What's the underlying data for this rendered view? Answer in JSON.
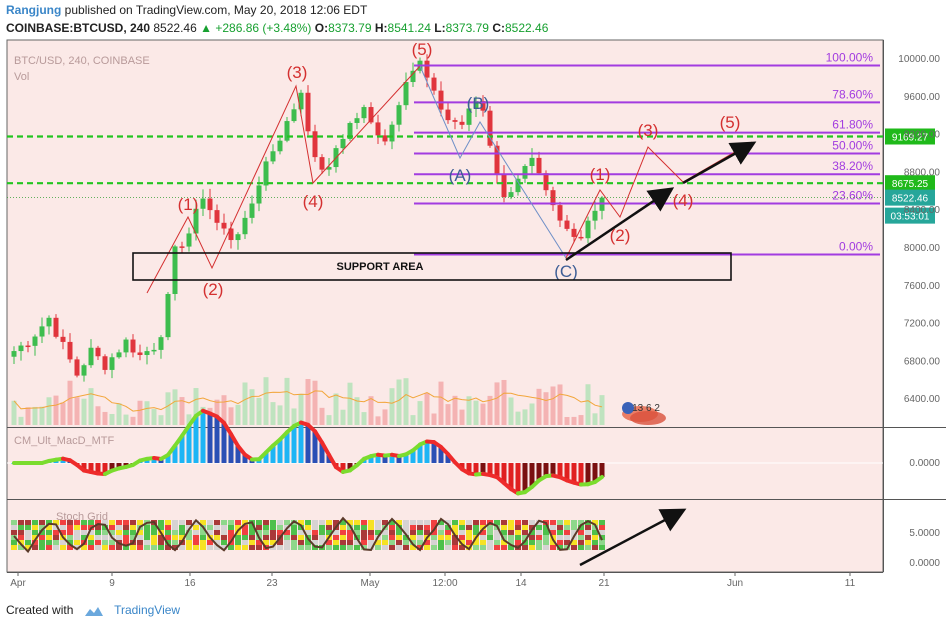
{
  "header": {
    "author": "Rangjung",
    "published_text": "published on TradingView.com, May 20, 2018 12:06 EDT",
    "symbol": "COINBASE:BTCUSD, 240",
    "last": "8522.46",
    "change": "+286.86 (+3.48%)",
    "o_label": "O:",
    "o": "8373.79",
    "h_label": "H:",
    "h": "8541.24",
    "l_label": "L:",
    "l": "8373.79",
    "c_label": "C:",
    "c": "8522.46"
  },
  "legend": {
    "series": "BTC/USD, 240, COINBASE",
    "vol": "Vol"
  },
  "footer": {
    "created_with": "Created with",
    "brand": "TradingView"
  },
  "colors": {
    "bull": "#3dbd4e",
    "bear": "#e0353d",
    "fib": "#a23ce0",
    "dashed": "#22c51f",
    "wave": "#d43030",
    "abc": "#3d5e96",
    "ma": "#f2a63b"
  },
  "panel_labels": {
    "macd": "CM_Ult_MacD_MTF",
    "stoch": "Stoch Grid"
  },
  "chart_data": {
    "type": "candlestick",
    "title": "BTC/USD, 240, COINBASE",
    "ylim": [
      6200,
      10150
    ],
    "y_ticks": [
      "10000.00",
      "9600.00",
      "9200.00",
      "8800.00",
      "8400.00",
      "8000.00",
      "7600.00",
      "7200.00",
      "6800.00",
      "6400.00"
    ],
    "x_ticks": [
      "Apr",
      "9",
      "16",
      "23",
      "May",
      "12:00",
      "14",
      "21",
      "Jun",
      "11"
    ],
    "price_path": [
      [
        0,
        6900
      ],
      [
        2,
        7000
      ],
      [
        5,
        7250
      ],
      [
        7,
        6950
      ],
      [
        9,
        6650
      ],
      [
        11,
        6900
      ],
      [
        13,
        6750
      ],
      [
        16,
        7000
      ],
      [
        18,
        6850
      ],
      [
        20,
        6950
      ],
      [
        21,
        7100
      ],
      [
        22,
        7450
      ],
      [
        23,
        7950
      ],
      [
        25,
        8150
      ],
      [
        27,
        8550
      ],
      [
        29,
        8250
      ],
      [
        31,
        8100
      ],
      [
        33,
        8250
      ],
      [
        36,
        8900
      ],
      [
        39,
        9300
      ],
      [
        41,
        9650
      ],
      [
        43,
        8900
      ],
      [
        45,
        8800
      ],
      [
        46,
        9050
      ],
      [
        48,
        9300
      ],
      [
        50,
        9450
      ],
      [
        51,
        9300
      ],
      [
        53,
        9150
      ],
      [
        54,
        9300
      ],
      [
        56,
        9800
      ],
      [
        58,
        9950
      ],
      [
        60,
        9600
      ],
      [
        62,
        9350
      ],
      [
        64,
        9300
      ],
      [
        66,
        9550
      ],
      [
        67,
        9450
      ],
      [
        68,
        9100
      ],
      [
        70,
        8500
      ],
      [
        72,
        8750
      ],
      [
        74,
        8900
      ],
      [
        76,
        8550
      ],
      [
        78,
        8250
      ],
      [
        80,
        8100
      ],
      [
        81,
        8150
      ],
      [
        82,
        8300
      ],
      [
        83,
        8400
      ],
      [
        84,
        8522
      ]
    ],
    "fibonacci": [
      {
        "level": "100.00%",
        "price": 9920
      },
      {
        "level": "78.60%",
        "price": 9530
      },
      {
        "level": "61.80%",
        "price": 9210
      },
      {
        "level": "50.00%",
        "price": 8990
      },
      {
        "level": "38.20%",
        "price": 8770
      },
      {
        "level": "23.60%",
        "price": 8460
      },
      {
        "level": "0.00%",
        "price": 7920
      }
    ],
    "horizontal_levels": [
      {
        "label": "9169.27",
        "price": 9169.27
      },
      {
        "label": "8675.25",
        "price": 8675.25
      }
    ],
    "last_price_label": "8522.46",
    "countdown": "03:53:01",
    "support_area": {
      "label": "SUPPORT AREA",
      "from": 7720,
      "to": 8010
    },
    "wave_labels": [
      "(1)",
      "(2)",
      "(3)",
      "(4)",
      "(5)",
      "(A)",
      "(B)",
      "(C)",
      "(1)",
      "(2)",
      "(3)",
      "(4)",
      "(5)"
    ],
    "macd_ticks": [
      "0.0000"
    ],
    "stoch_ticks": [
      "5.0000",
      "0.0000"
    ],
    "event_badge": "13 6 2"
  }
}
